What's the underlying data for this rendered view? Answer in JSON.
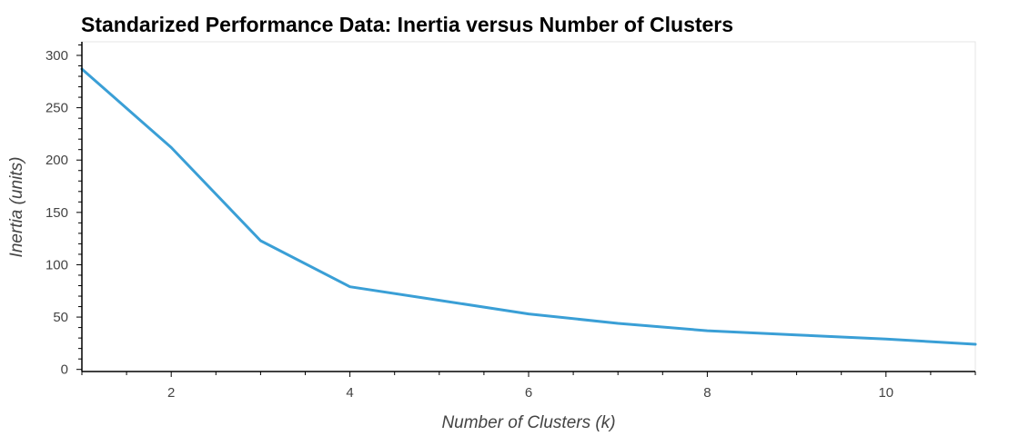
{
  "chart_data": {
    "type": "line",
    "title": "Standarized Performance Data: Inertia versus Number of Clusters",
    "xlabel": "Number of Clusters (k)",
    "ylabel": "Inertia (units)",
    "xlim": [
      1,
      11
    ],
    "ylim": [
      -2,
      313
    ],
    "x_ticks": [
      2,
      4,
      6,
      8,
      10
    ],
    "y_ticks": [
      0,
      50,
      100,
      150,
      200,
      250,
      300
    ],
    "grid": false,
    "series": [
      {
        "color": "#3a9fd6",
        "x": [
          1,
          2,
          3,
          4,
          5,
          6,
          7,
          8,
          9,
          10,
          11
        ],
        "y": [
          287,
          212,
          123,
          79,
          66,
          53,
          44,
          37,
          33,
          29,
          24
        ]
      }
    ]
  }
}
